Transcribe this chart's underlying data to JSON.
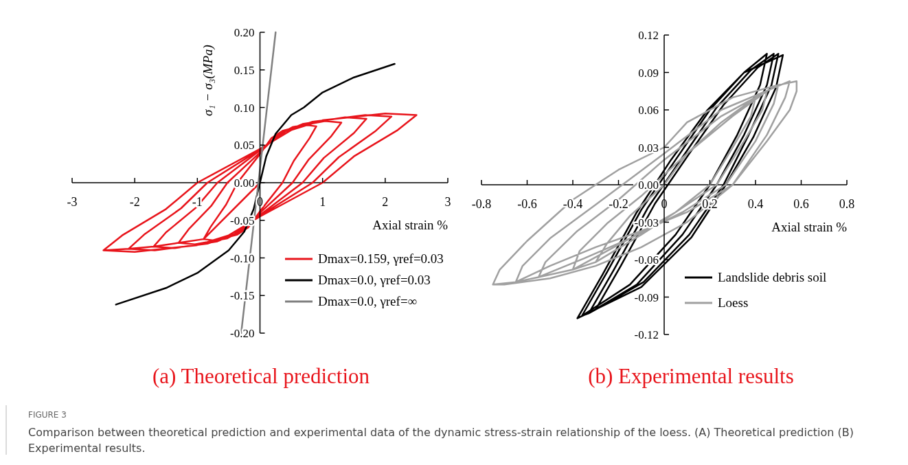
{
  "chart_data": [
    {
      "type": "line",
      "title": "(a) Theoretical prediction",
      "xlabel": "Axial strain %",
      "ylabel": "σ₁ − σ₃(MPa)",
      "xlim": [
        -3,
        3
      ],
      "xticks": [
        -3,
        -2,
        -1,
        0,
        1,
        2,
        3
      ],
      "ylim": [
        -0.2,
        0.2
      ],
      "yticks": [
        {
          "value": 0.2,
          "label": "0.20"
        },
        0.15,
        {
          "value": 0.1,
          "label": "0.10"
        },
        0.05,
        {
          "value": 0,
          "label": "0.00"
        },
        -0.05,
        {
          "value": -0.1,
          "label": "-0.10"
        },
        -0.15,
        {
          "value": -0.2,
          "label": "-0.20"
        }
      ],
      "grid": false,
      "legend": "bottom right",
      "marker": "none",
      "line_style": "solid",
      "annotations": [
        "FIGURE 3",
        "Comparison between theoretical prediction and experimental data of the dynamic stress-strain relationship of the loess. (A) Theoretical prediction (B) Experimental results."
      ],
      "series": [
        {
          "name": "Dmax=0.159, γref=0.03",
          "color": "#e8141b",
          "x": [
            0,
            -0.9,
            -0.79,
            -0.54,
            -0.36,
            0,
            0.18,
            0.36,
            0.72,
            0.9,
            0.79,
            0.54,
            0.36,
            0,
            -0.18,
            -0.36,
            -0.72,
            -0.9,
            -1.3,
            -1.14,
            -0.78,
            -0.52,
            0,
            0.26,
            0.52,
            1.04,
            1.3,
            1.14,
            0.78,
            0.52,
            0,
            -0.26,
            -0.52,
            -1.04,
            -1.3,
            -1.7,
            -1.5,
            -1.02,
            -0.68,
            0,
            0.34,
            0.68,
            1.36,
            1.7,
            1.5,
            1.02,
            0.68,
            0,
            -0.34,
            -0.68,
            -1.36,
            -1.7,
            -2.1,
            -1.85,
            -1.26,
            -0.84,
            0,
            0.42,
            0.84,
            1.68,
            2.1,
            1.85,
            1.26,
            0.84,
            0,
            -0.42,
            -0.84,
            -1.68,
            -2.1,
            -2.5,
            -2.2,
            -1.5,
            -1,
            0,
            0.5,
            1,
            2,
            2.5,
            2.2,
            1.5,
            1,
            0,
            -0.5,
            -1,
            -2,
            -2.5
          ],
          "values": [
            0,
            -0.075,
            -0.059,
            -0.029,
            0,
            0.038,
            0.059,
            0.069,
            0.077,
            0.075,
            0.059,
            0.029,
            0,
            -0.038,
            -0.059,
            -0.069,
            -0.077,
            -0.075,
            -0.08,
            -0.062,
            -0.031,
            0,
            0.04,
            0.062,
            0.074,
            0.082,
            0.08,
            0.062,
            0.031,
            0,
            -0.04,
            -0.062,
            -0.074,
            -0.082,
            -0.08,
            -0.085,
            -0.066,
            -0.033,
            0,
            0.043,
            0.066,
            0.078,
            0.087,
            0.085,
            0.066,
            0.033,
            0,
            -0.043,
            -0.066,
            -0.078,
            -0.087,
            -0.085,
            -0.088,
            -0.069,
            -0.034,
            0,
            0.044,
            0.069,
            0.081,
            0.09,
            0.088,
            0.069,
            0.034,
            0,
            -0.044,
            -0.069,
            -0.081,
            -0.09,
            -0.088,
            -0.09,
            -0.07,
            -0.035,
            0,
            0.045,
            0.07,
            0.083,
            0.092,
            0.09,
            0.07,
            0.035,
            0,
            -0.045,
            -0.07,
            -0.083,
            -0.092,
            -0.09
          ]
        },
        {
          "name": "Dmax=0.0, γref=0.03",
          "color": "#000000",
          "x": [
            -2.3,
            -1.5,
            -1,
            -0.5,
            -0.25,
            -0.1,
            0,
            0.1,
            0.25,
            0.5,
            0.7,
            1,
            1.5,
            2.15
          ],
          "values": [
            -0.162,
            -0.14,
            -0.12,
            -0.09,
            -0.065,
            -0.035,
            0,
            0.035,
            0.065,
            0.09,
            0.1,
            0.12,
            0.14,
            0.158
          ]
        },
        {
          "name": "Dmax=0.0, γref=∞",
          "color": "#808080",
          "x": [
            -0.3,
            0.25
          ],
          "values": [
            -0.2,
            0.2
          ]
        }
      ]
    },
    {
      "type": "line",
      "title": "(b) Experimental results",
      "xlabel": "Axial strain %",
      "xlim": [
        -0.8,
        0.8
      ],
      "xticks": [
        -0.8,
        -0.6,
        -0.4,
        -0.2,
        0,
        0.2,
        0.4,
        0.6,
        0.8
      ],
      "ylim": [
        -0.12,
        0.12
      ],
      "yticks": [
        0.12,
        0.09,
        0.06,
        0.03,
        {
          "value": 0,
          "label": "0.00"
        },
        -0.03,
        -0.06,
        -0.09,
        -0.12
      ],
      "grid": false,
      "legend": "bottom right",
      "marker": "none",
      "line_style": "solid",
      "series": [
        {
          "name": "Landslide debris soil",
          "color": "#000000",
          "x": [
            -0.36,
            -0.25,
            -0.1,
            0.05,
            0.2,
            0.35,
            0.45,
            0.42,
            0.32,
            0.2,
            0.05,
            -0.15,
            -0.36,
            -0.33,
            -0.22,
            -0.07,
            0.08,
            0.23,
            0.38,
            0.48,
            0.45,
            0.35,
            0.23,
            0.08,
            -0.12,
            -0.33,
            -0.3,
            -0.19,
            -0.04,
            0.11,
            0.26,
            0.41,
            0.5,
            0.47,
            0.37,
            0.26,
            0.11,
            -0.09,
            -0.3,
            -0.38,
            -0.27,
            -0.12,
            0.03,
            0.19,
            0.35,
            0.52,
            0.49,
            0.39,
            0.27,
            0.12,
            -0.1,
            -0.38
          ],
          "values": [
            -0.105,
            -0.07,
            -0.02,
            0.02,
            0.06,
            0.09,
            0.105,
            0.08,
            0.04,
            0,
            -0.04,
            -0.08,
            -0.105,
            -0.103,
            -0.068,
            -0.018,
            0.022,
            0.062,
            0.092,
            0.105,
            0.08,
            0.04,
            0,
            -0.04,
            -0.08,
            -0.103,
            -0.1,
            -0.065,
            -0.015,
            0.025,
            0.064,
            0.094,
            0.105,
            0.08,
            0.04,
            0,
            -0.04,
            -0.078,
            -0.1,
            -0.107,
            -0.072,
            -0.022,
            0.02,
            0.06,
            0.09,
            0.104,
            0.078,
            0.038,
            0,
            -0.042,
            -0.082,
            -0.107
          ]
        },
        {
          "name": "Loess",
          "color": "#a0a0a0",
          "x": [
            -0.3,
            -0.25,
            -0.15,
            0,
            0.1,
            0.25,
            0.4,
            0.38,
            0.3,
            0.2,
            0.05,
            -0.1,
            -0.3,
            -0.4,
            -0.37,
            -0.25,
            -0.1,
            0.1,
            0.3,
            0.45,
            0.43,
            0.35,
            0.23,
            0.05,
            -0.15,
            -0.4,
            -0.55,
            -0.52,
            -0.38,
            -0.2,
            0,
            0.25,
            0.5,
            0.48,
            0.4,
            0.27,
            0.08,
            -0.15,
            -0.35,
            -0.55,
            -0.65,
            -0.62,
            -0.5,
            -0.3,
            0,
            0.25,
            0.55,
            0.53,
            0.45,
            0.3,
            0.1,
            -0.1,
            -0.3,
            -0.5,
            -0.65,
            -0.75,
            -0.72,
            -0.6,
            -0.4,
            -0.2,
            0,
            0.1,
            0.3,
            0.5,
            0.58,
            0.58,
            0.55,
            0.45,
            0.3,
            0.1,
            -0.1,
            -0.3,
            -0.5,
            -0.7,
            -0.75
          ],
          "values": [
            -0.062,
            -0.047,
            -0.025,
            0,
            0.025,
            0.05,
            0.07,
            0.055,
            0.03,
            0,
            -0.022,
            -0.04,
            -0.062,
            -0.068,
            -0.053,
            -0.031,
            -0.009,
            0.025,
            0.055,
            0.075,
            0.06,
            0.035,
            0,
            -0.022,
            -0.043,
            -0.068,
            -0.074,
            -0.062,
            -0.037,
            -0.012,
            0.02,
            0.055,
            0.08,
            0.065,
            0.035,
            0,
            -0.022,
            -0.043,
            -0.059,
            -0.074,
            -0.078,
            -0.065,
            -0.043,
            -0.016,
            0.025,
            0.06,
            0.083,
            0.07,
            0.04,
            0,
            -0.022,
            -0.037,
            -0.05,
            -0.065,
            -0.078,
            -0.08,
            -0.068,
            -0.045,
            -0.012,
            0.012,
            0.03,
            0.05,
            0.07,
            0.08,
            0.083,
            0.075,
            0.06,
            0.035,
            0,
            -0.03,
            -0.05,
            -0.065,
            -0.075,
            -0.08,
            -0.08
          ]
        }
      ]
    }
  ]
}
